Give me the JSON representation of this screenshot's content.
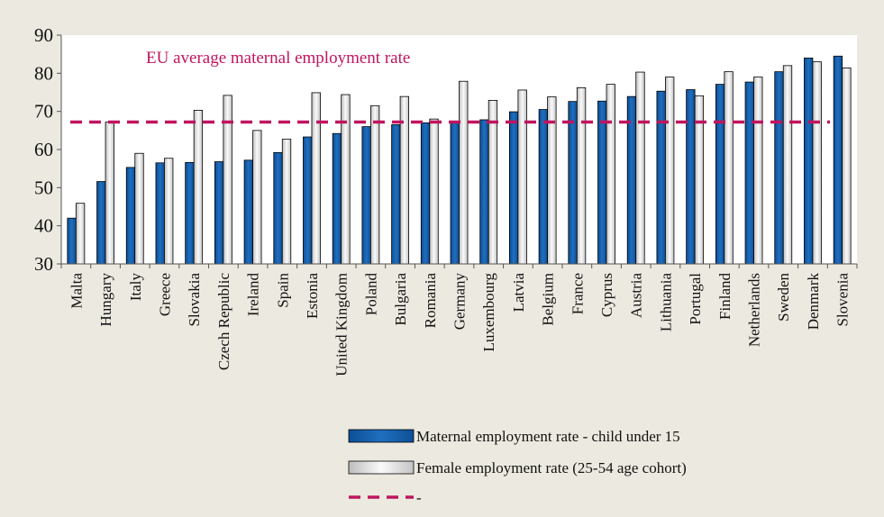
{
  "chart_data": {
    "type": "bar",
    "title": "",
    "xlabel": "",
    "ylabel": "",
    "ylim": [
      30,
      90
    ],
    "yticks": [
      30,
      40,
      50,
      60,
      70,
      80,
      90
    ],
    "grid": false,
    "legend_position": "bottom-right",
    "categories": [
      "Malta",
      "Hungary",
      "Italy",
      "Greece",
      "Slovakia",
      "Czech Republic",
      "Ireland",
      "Spain",
      "Estonia",
      "United Kingdom",
      "Poland",
      "Bulgaria",
      "Romania",
      "Germany",
      "Luxembourg",
      "Latvia",
      "Belgium",
      "France",
      "Cyprus",
      "Austria",
      "Lithuania",
      "Portugal",
      "Finland",
      "Netherlands",
      "Sweden",
      "Denmark",
      "Slovenia"
    ],
    "series": [
      {
        "name": "Maternal employment rate - child under 15",
        "color": "#1f6fbf",
        "values": [
          42.0,
          51.6,
          55.3,
          56.5,
          56.6,
          56.8,
          57.2,
          59.2,
          63.3,
          64.2,
          66.0,
          66.5,
          67.0,
          67.3,
          67.8,
          69.9,
          70.5,
          72.6,
          72.7,
          73.9,
          75.3,
          75.7,
          77.1,
          77.7,
          80.4,
          84.0,
          84.5
        ]
      },
      {
        "name": "Female employment rate (25-54 age cohort)",
        "color": "#e6e6e6",
        "values": [
          45.9,
          67.2,
          59.0,
          57.7,
          70.3,
          74.2,
          65.0,
          62.7,
          74.9,
          74.4,
          71.5,
          73.9,
          68.0,
          77.9,
          72.9,
          75.6,
          73.8,
          76.2,
          77.1,
          80.3,
          79.0,
          74.1,
          80.4,
          79.0,
          82.0,
          83.0,
          81.4
        ]
      }
    ],
    "reference_line": {
      "label": "EU average maternal employment rate",
      "legend_label": "-",
      "value": 67.2,
      "color": "#c0155f"
    }
  }
}
